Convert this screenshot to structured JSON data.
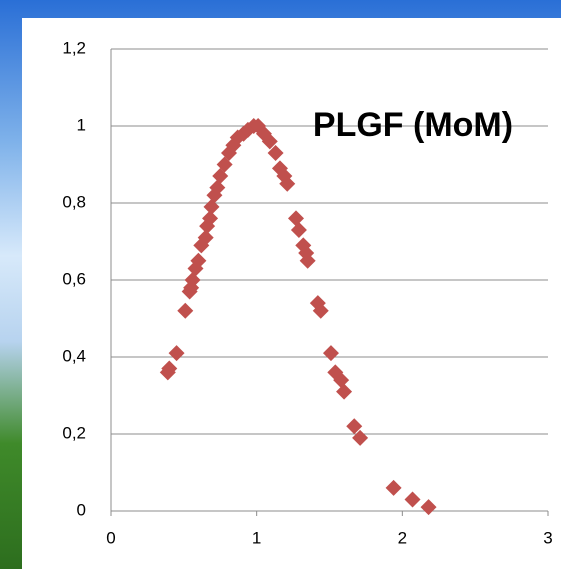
{
  "chart_data": {
    "type": "scatter",
    "title": "PLGF (MoM)",
    "color": "#c0504d",
    "grid": true,
    "xlim": [
      0,
      3
    ],
    "xticks": [
      0,
      1,
      2,
      3
    ],
    "ylim": [
      0,
      1.2
    ],
    "yticks": [
      0,
      {
        "value": 0.2,
        "label": "0,2"
      },
      {
        "value": 0.4,
        "label": "0,4"
      },
      {
        "value": 0.6,
        "label": "0,6"
      },
      {
        "value": 0.8,
        "label": "0,8"
      },
      1,
      {
        "value": 1.2,
        "label": "1,2"
      }
    ],
    "x": [
      0.39,
      0.4,
      0.45,
      0.51,
      0.54,
      0.55,
      0.56,
      0.58,
      0.6,
      0.62,
      0.65,
      0.66,
      0.68,
      0.69,
      0.71,
      0.73,
      0.75,
      0.78,
      0.81,
      0.84,
      0.87,
      0.91,
      0.94,
      0.98,
      1.01,
      1.05,
      1.09,
      1.13,
      1.16,
      1.19,
      1.21,
      1.27,
      1.29,
      1.32,
      1.34,
      1.35,
      1.42,
      1.44,
      1.51,
      1.54,
      1.58,
      1.6,
      1.67,
      1.71,
      1.94,
      2.07,
      2.18
    ],
    "values": [
      0.36,
      0.37,
      0.41,
      0.52,
      0.57,
      0.58,
      0.6,
      0.63,
      0.65,
      0.69,
      0.71,
      0.74,
      0.76,
      0.79,
      0.82,
      0.84,
      0.87,
      0.9,
      0.93,
      0.95,
      0.97,
      0.98,
      0.99,
      1.0,
      1.0,
      0.98,
      0.96,
      0.93,
      0.89,
      0.87,
      0.85,
      0.76,
      0.73,
      0.69,
      0.67,
      0.65,
      0.54,
      0.52,
      0.41,
      0.36,
      0.34,
      0.31,
      0.22,
      0.19,
      0.06,
      0.03,
      0.01
    ]
  }
}
